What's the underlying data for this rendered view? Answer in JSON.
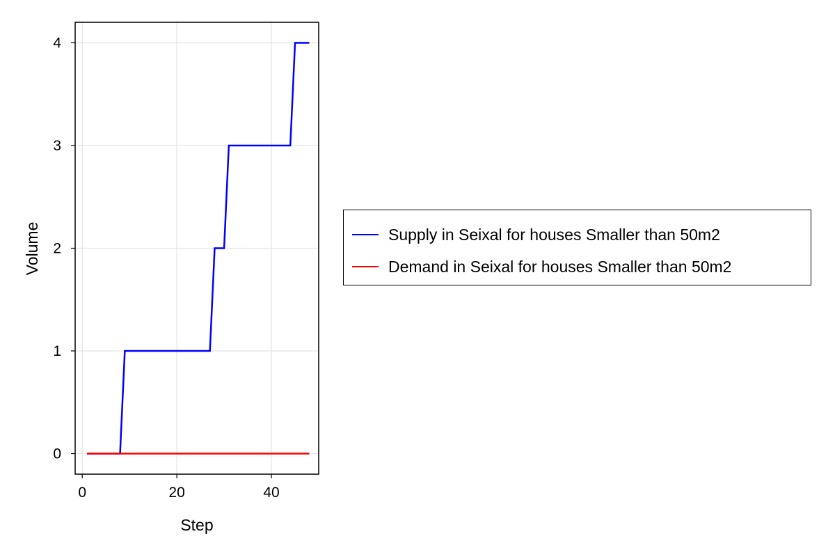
{
  "chart_data": {
    "type": "line",
    "title": "",
    "xlabel": "Step",
    "ylabel": "Volume",
    "xlim": [
      -1.5,
      50
    ],
    "ylim": [
      -0.2,
      4.2
    ],
    "xticks": [
      0,
      20,
      40
    ],
    "yticks": [
      0,
      1,
      2,
      3,
      4
    ],
    "grid": true,
    "legend_position": "right",
    "series": [
      {
        "name": "Supply in Seixal for houses Smaller than 50m2",
        "color": "#0000ff",
        "x": [
          1,
          2,
          3,
          4,
          5,
          6,
          7,
          8,
          9,
          10,
          11,
          12,
          13,
          14,
          15,
          16,
          17,
          18,
          19,
          20,
          21,
          22,
          23,
          24,
          25,
          26,
          27,
          28,
          29,
          30,
          31,
          32,
          33,
          34,
          35,
          36,
          37,
          38,
          39,
          40,
          41,
          42,
          43,
          44,
          45,
          46,
          47,
          48
        ],
        "y": [
          0,
          0,
          0,
          0,
          0,
          0,
          0,
          0,
          1,
          1,
          1,
          1,
          1,
          1,
          1,
          1,
          1,
          1,
          1,
          1,
          1,
          1,
          1,
          1,
          1,
          1,
          1,
          2,
          2,
          2,
          3,
          3,
          3,
          3,
          3,
          3,
          3,
          3,
          3,
          3,
          3,
          3,
          3,
          3,
          4,
          4,
          4,
          4
        ]
      },
      {
        "name": "Demand in Seixal for houses Smaller than 50m2",
        "color": "#ff0000",
        "x": [
          1,
          2,
          3,
          4,
          5,
          6,
          7,
          8,
          9,
          10,
          11,
          12,
          13,
          14,
          15,
          16,
          17,
          18,
          19,
          20,
          21,
          22,
          23,
          24,
          25,
          26,
          27,
          28,
          29,
          30,
          31,
          32,
          33,
          34,
          35,
          36,
          37,
          38,
          39,
          40,
          41,
          42,
          43,
          44,
          45,
          46,
          47,
          48
        ],
        "y": [
          0,
          0,
          0,
          0,
          0,
          0,
          0,
          0,
          0,
          0,
          0,
          0,
          0,
          0,
          0,
          0,
          0,
          0,
          0,
          0,
          0,
          0,
          0,
          0,
          0,
          0,
          0,
          0,
          0,
          0,
          0,
          0,
          0,
          0,
          0,
          0,
          0,
          0,
          0,
          0,
          0,
          0,
          0,
          0,
          0,
          0,
          0,
          0
        ]
      }
    ]
  }
}
